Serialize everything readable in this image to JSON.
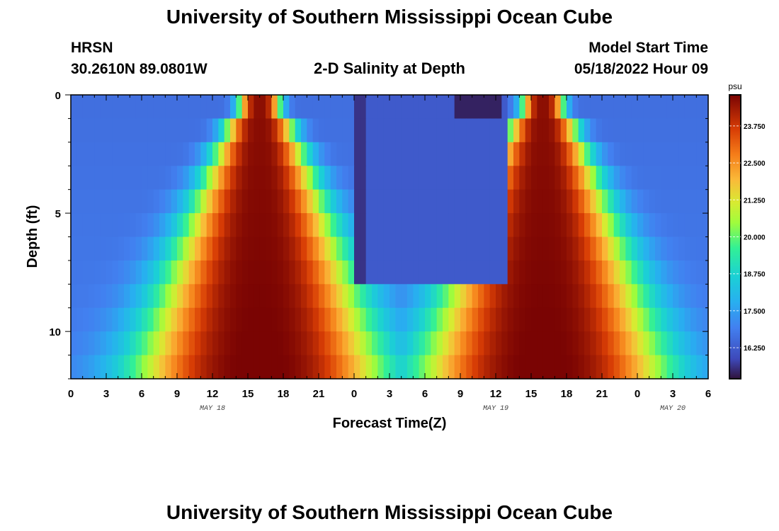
{
  "page": {
    "title": "University of Southern Mississippi Ocean Cube",
    "station": "HRSN",
    "coords": "30.2610N  89.0801W",
    "model_start_label": "Model Start Time",
    "model_start_value": "05/18/2022 Hour 09",
    "footer_title": "University of Southern Mississippi Ocean Cube"
  },
  "chart_data": {
    "type": "heatmap",
    "title": "2-D Salinity at Depth",
    "xlabel": "Forecast Time(Z)",
    "ylabel": "Depth (ft)",
    "x_hours": [
      0,
      54
    ],
    "x_tick_labels": [
      "0",
      "3",
      "6",
      "9",
      "12",
      "15",
      "18",
      "21",
      "0",
      "3",
      "6",
      "9",
      "12",
      "15",
      "18",
      "21",
      "0",
      "3",
      "6"
    ],
    "date_labels": [
      {
        "hour": 12,
        "label": "MAY 18"
      },
      {
        "hour": 36,
        "label": "MAY 19"
      },
      {
        "hour": 51,
        "label": "MAY 20"
      }
    ],
    "ylim": [
      0,
      12
    ],
    "y_tick_labels": [
      "0",
      "5",
      "10"
    ],
    "y_major_values": [
      0,
      5,
      10
    ],
    "depth_levels": 12,
    "colorbar": {
      "unit": "psu",
      "min": 15.2,
      "max": 24.8,
      "labels": [
        "23.750",
        "22.500",
        "21.250",
        "20.000",
        "18.750",
        "17.500",
        "16.250"
      ],
      "values": [
        23.75,
        22.5,
        21.25,
        20.0,
        18.75,
        17.5,
        16.25
      ]
    },
    "salinity_model": {
      "fresh_base_psu": 16.6,
      "salty_peak_psu": 24.6,
      "pulse_1_center_hour": 16,
      "pulse_2_center_hour": 40,
      "surface_halfwidth_hours": 1.8,
      "bottom_halfwidth_hours": 10.5,
      "fresh_lens_hours": [
        24,
        37
      ],
      "fresh_lens_min_psu": 15.4
    }
  }
}
